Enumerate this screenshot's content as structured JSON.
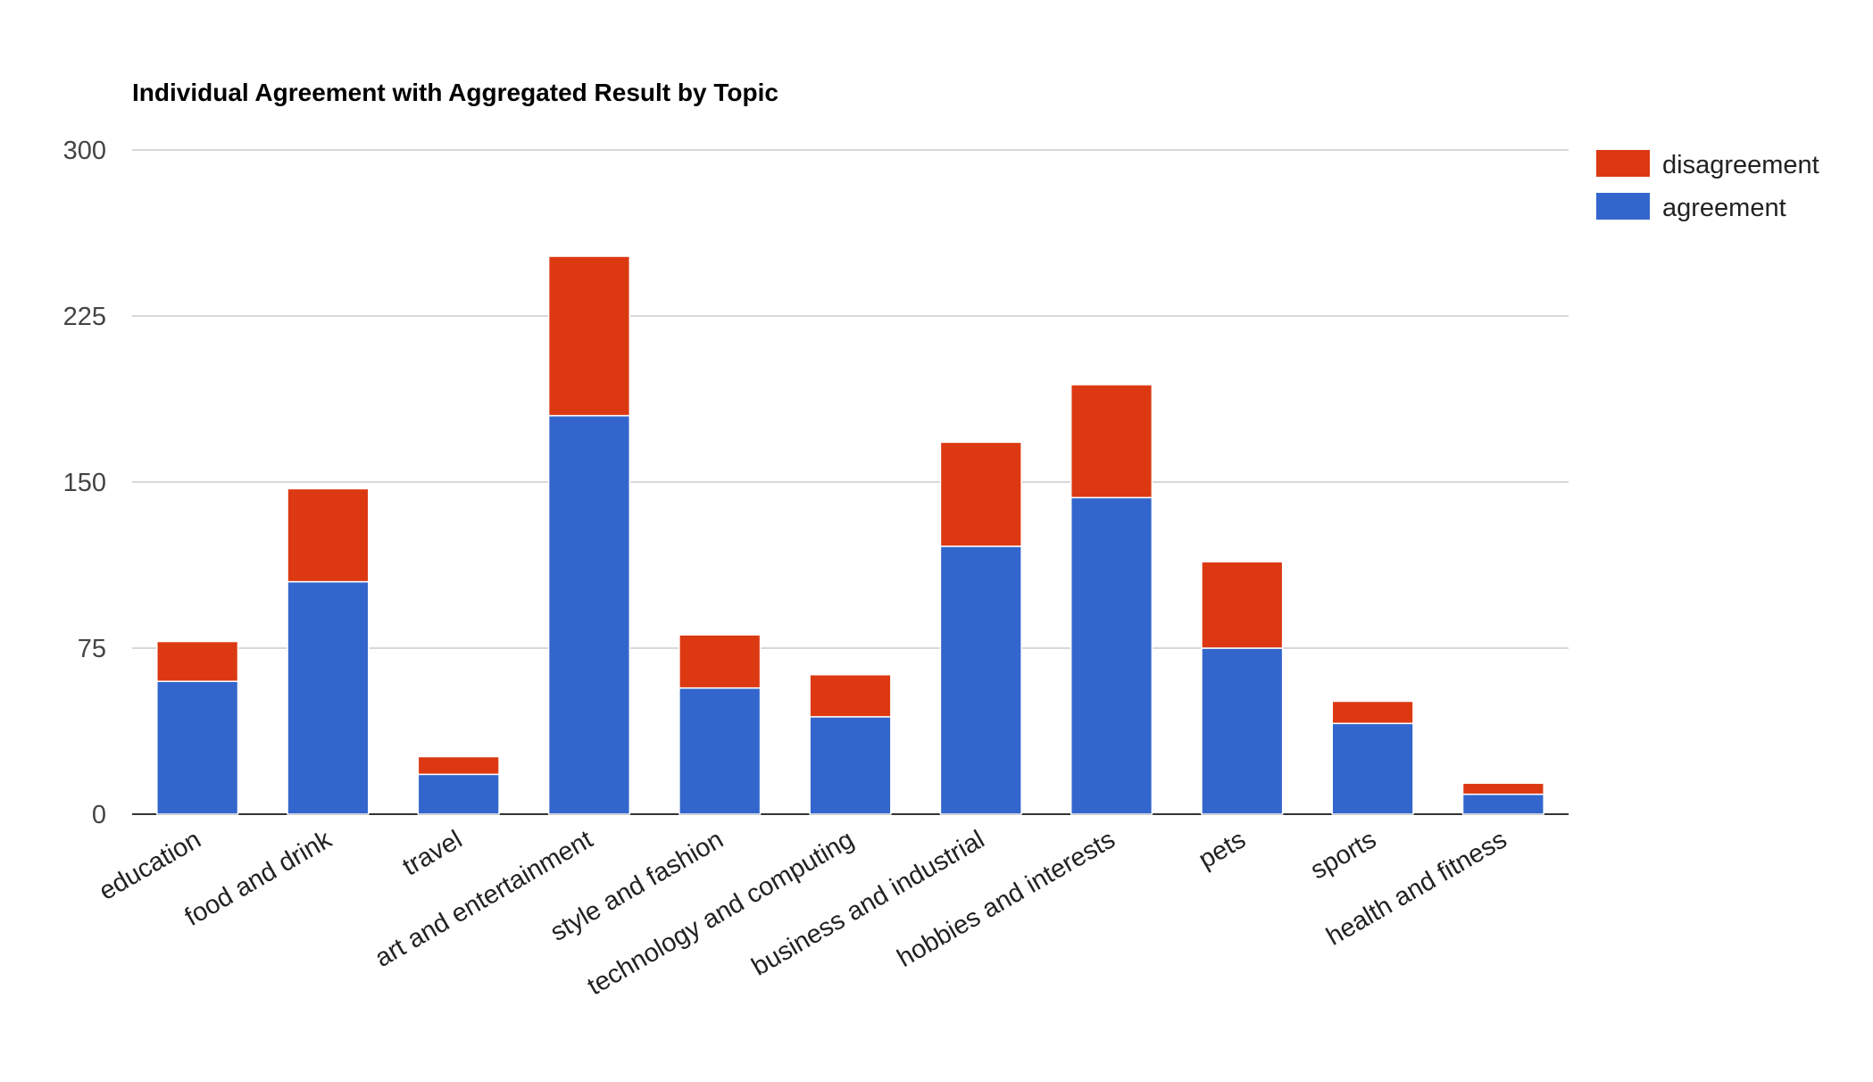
{
  "chart_data": {
    "type": "bar",
    "stacked": true,
    "title": "Individual Agreement with Aggregated Result by Topic",
    "xlabel": "",
    "ylabel": "",
    "ylim": [
      0,
      300
    ],
    "yticks": [
      0,
      75,
      150,
      225,
      300
    ],
    "grid": true,
    "legend_position": "right",
    "categories": [
      "education",
      "food and drink",
      "travel",
      "art and entertainment",
      "style and fashion",
      "technology and computing",
      "business and industrial",
      "hobbies and interests",
      "pets",
      "sports",
      "health and fitness"
    ],
    "series": [
      {
        "name": "agreement",
        "color": "#3366cc",
        "values": [
          60,
          105,
          18,
          180,
          57,
          44,
          121,
          143,
          75,
          41,
          9
        ]
      },
      {
        "name": "disagreement",
        "color": "#dc3912",
        "values": [
          18,
          42,
          8,
          72,
          24,
          19,
          47,
          51,
          39,
          10,
          5
        ]
      }
    ],
    "legend_order": [
      "disagreement",
      "agreement"
    ]
  }
}
